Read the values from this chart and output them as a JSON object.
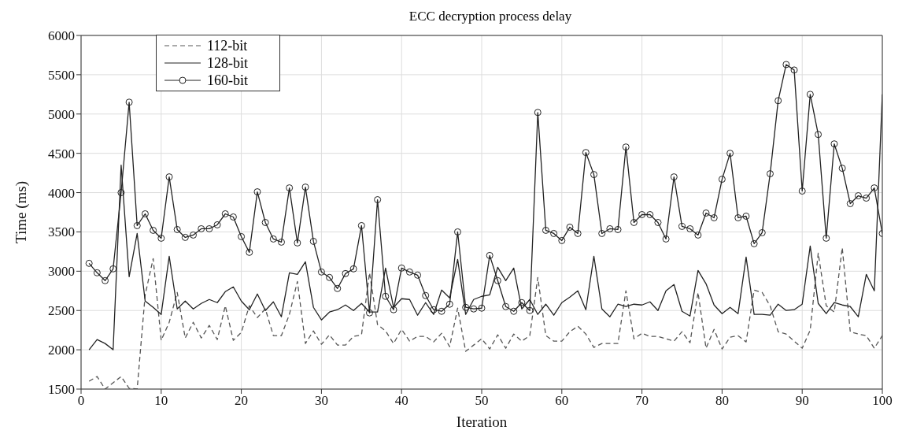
{
  "chart_data": {
    "type": "line",
    "title": "ECC decryption process delay",
    "xlabel": "Iteration",
    "ylabel": "Time (ms)",
    "x": [
      1,
      2,
      3,
      4,
      5,
      6,
      7,
      8,
      9,
      10,
      11,
      12,
      13,
      14,
      15,
      16,
      17,
      18,
      19,
      20,
      21,
      22,
      23,
      24,
      25,
      26,
      27,
      28,
      29,
      30,
      31,
      32,
      33,
      34,
      35,
      36,
      37,
      38,
      39,
      40,
      41,
      42,
      43,
      44,
      45,
      46,
      47,
      48,
      49,
      50,
      51,
      52,
      53,
      54,
      55,
      56,
      57,
      58,
      59,
      60,
      61,
      62,
      63,
      64,
      65,
      66,
      67,
      68,
      69,
      70,
      71,
      72,
      73,
      74,
      75,
      76,
      77,
      78,
      79,
      80,
      81,
      82,
      83,
      84,
      85,
      86,
      87,
      88,
      89,
      90,
      91,
      92,
      93,
      94,
      95,
      96,
      97,
      98,
      99,
      100
    ],
    "xlim": [
      0,
      100
    ],
    "xticks": [
      0,
      10,
      20,
      30,
      40,
      50,
      60,
      70,
      80,
      90,
      100
    ],
    "ylim": [
      1500,
      6000
    ],
    "yticks": [
      1500,
      2000,
      2500,
      3000,
      3500,
      4000,
      4500,
      5000,
      5500,
      6000
    ],
    "grid": true,
    "legend": "top left",
    "series": [
      {
        "name": "112-bit",
        "color": "#555555",
        "line_style": "dashed",
        "marker": "none",
        "values": [
          1600,
          1660,
          1500,
          1580,
          1660,
          1510,
          1500,
          2700,
          3160,
          2120,
          2350,
          2730,
          2150,
          2350,
          2150,
          2310,
          2130,
          2560,
          2120,
          2220,
          2560,
          2410,
          2520,
          2180,
          2180,
          2450,
          2870,
          2080,
          2240,
          2070,
          2190,
          2060,
          2060,
          2170,
          2190,
          2980,
          2320,
          2240,
          2080,
          2260,
          2110,
          2170,
          2170,
          2100,
          2210,
          2040,
          2530,
          1980,
          2060,
          2140,
          2010,
          2190,
          2020,
          2200,
          2110,
          2180,
          2920,
          2180,
          2110,
          2110,
          2230,
          2300,
          2200,
          2030,
          2080,
          2080,
          2080,
          2750,
          2140,
          2210,
          2170,
          2170,
          2140,
          2110,
          2230,
          2090,
          2730,
          2020,
          2260,
          2010,
          2160,
          2180,
          2100,
          2760,
          2730,
          2560,
          2230,
          2200,
          2110,
          2020,
          2250,
          3230,
          2560,
          2480,
          3300,
          2230,
          2200,
          2180,
          2020,
          2180
        ]
      },
      {
        "name": "128-bit",
        "color": "#222222",
        "line_style": "solid",
        "marker": "none",
        "values": [
          2000,
          2130,
          2080,
          2000,
          4350,
          2930,
          3480,
          2620,
          2540,
          2450,
          3190,
          2520,
          2620,
          2520,
          2590,
          2640,
          2600,
          2740,
          2800,
          2620,
          2510,
          2710,
          2500,
          2610,
          2420,
          2980,
          2960,
          3120,
          2540,
          2380,
          2480,
          2510,
          2570,
          2500,
          2590,
          2480,
          2480,
          3040,
          2540,
          2650,
          2640,
          2440,
          2600,
          2450,
          2760,
          2660,
          3150,
          2450,
          2640,
          2680,
          2700,
          3050,
          2880,
          3040,
          2520,
          2640,
          2450,
          2580,
          2440,
          2600,
          2670,
          2750,
          2510,
          3190,
          2520,
          2420,
          2580,
          2550,
          2580,
          2570,
          2610,
          2500,
          2750,
          2830,
          2490,
          2430,
          3010,
          2840,
          2570,
          2460,
          2540,
          2460,
          3180,
          2450,
          2450,
          2440,
          2580,
          2500,
          2510,
          2580,
          3320,
          2590,
          2460,
          2600,
          2570,
          2550,
          2420,
          2960,
          2750,
          5250
        ]
      },
      {
        "name": "160-bit",
        "color": "#222222",
        "line_style": "solid",
        "marker": "circle",
        "values": [
          3100,
          2980,
          2880,
          3030,
          4000,
          5150,
          3580,
          3730,
          3520,
          3420,
          4200,
          3530,
          3430,
          3460,
          3540,
          3540,
          3590,
          3730,
          3690,
          3440,
          3240,
          4010,
          3620,
          3410,
          3370,
          4060,
          3360,
          4070,
          3380,
          2990,
          2920,
          2780,
          2970,
          3030,
          3580,
          2470,
          3910,
          2680,
          2510,
          3040,
          2990,
          2950,
          2690,
          2510,
          2490,
          2580,
          3500,
          2540,
          2520,
          2530,
          3200,
          2880,
          2550,
          2490,
          2600,
          2500,
          5020,
          3520,
          3480,
          3390,
          3560,
          3480,
          4510,
          4230,
          3480,
          3540,
          3530,
          4580,
          3620,
          3720,
          3720,
          3620,
          3410,
          4200,
          3570,
          3540,
          3460,
          3740,
          3680,
          4170,
          4500,
          3680,
          3700,
          3350,
          3490,
          4240,
          5170,
          5630,
          5560,
          4020,
          5250,
          4740,
          3420,
          4620,
          4310,
          3860,
          3960,
          3930,
          4060,
          3480
        ]
      }
    ]
  }
}
